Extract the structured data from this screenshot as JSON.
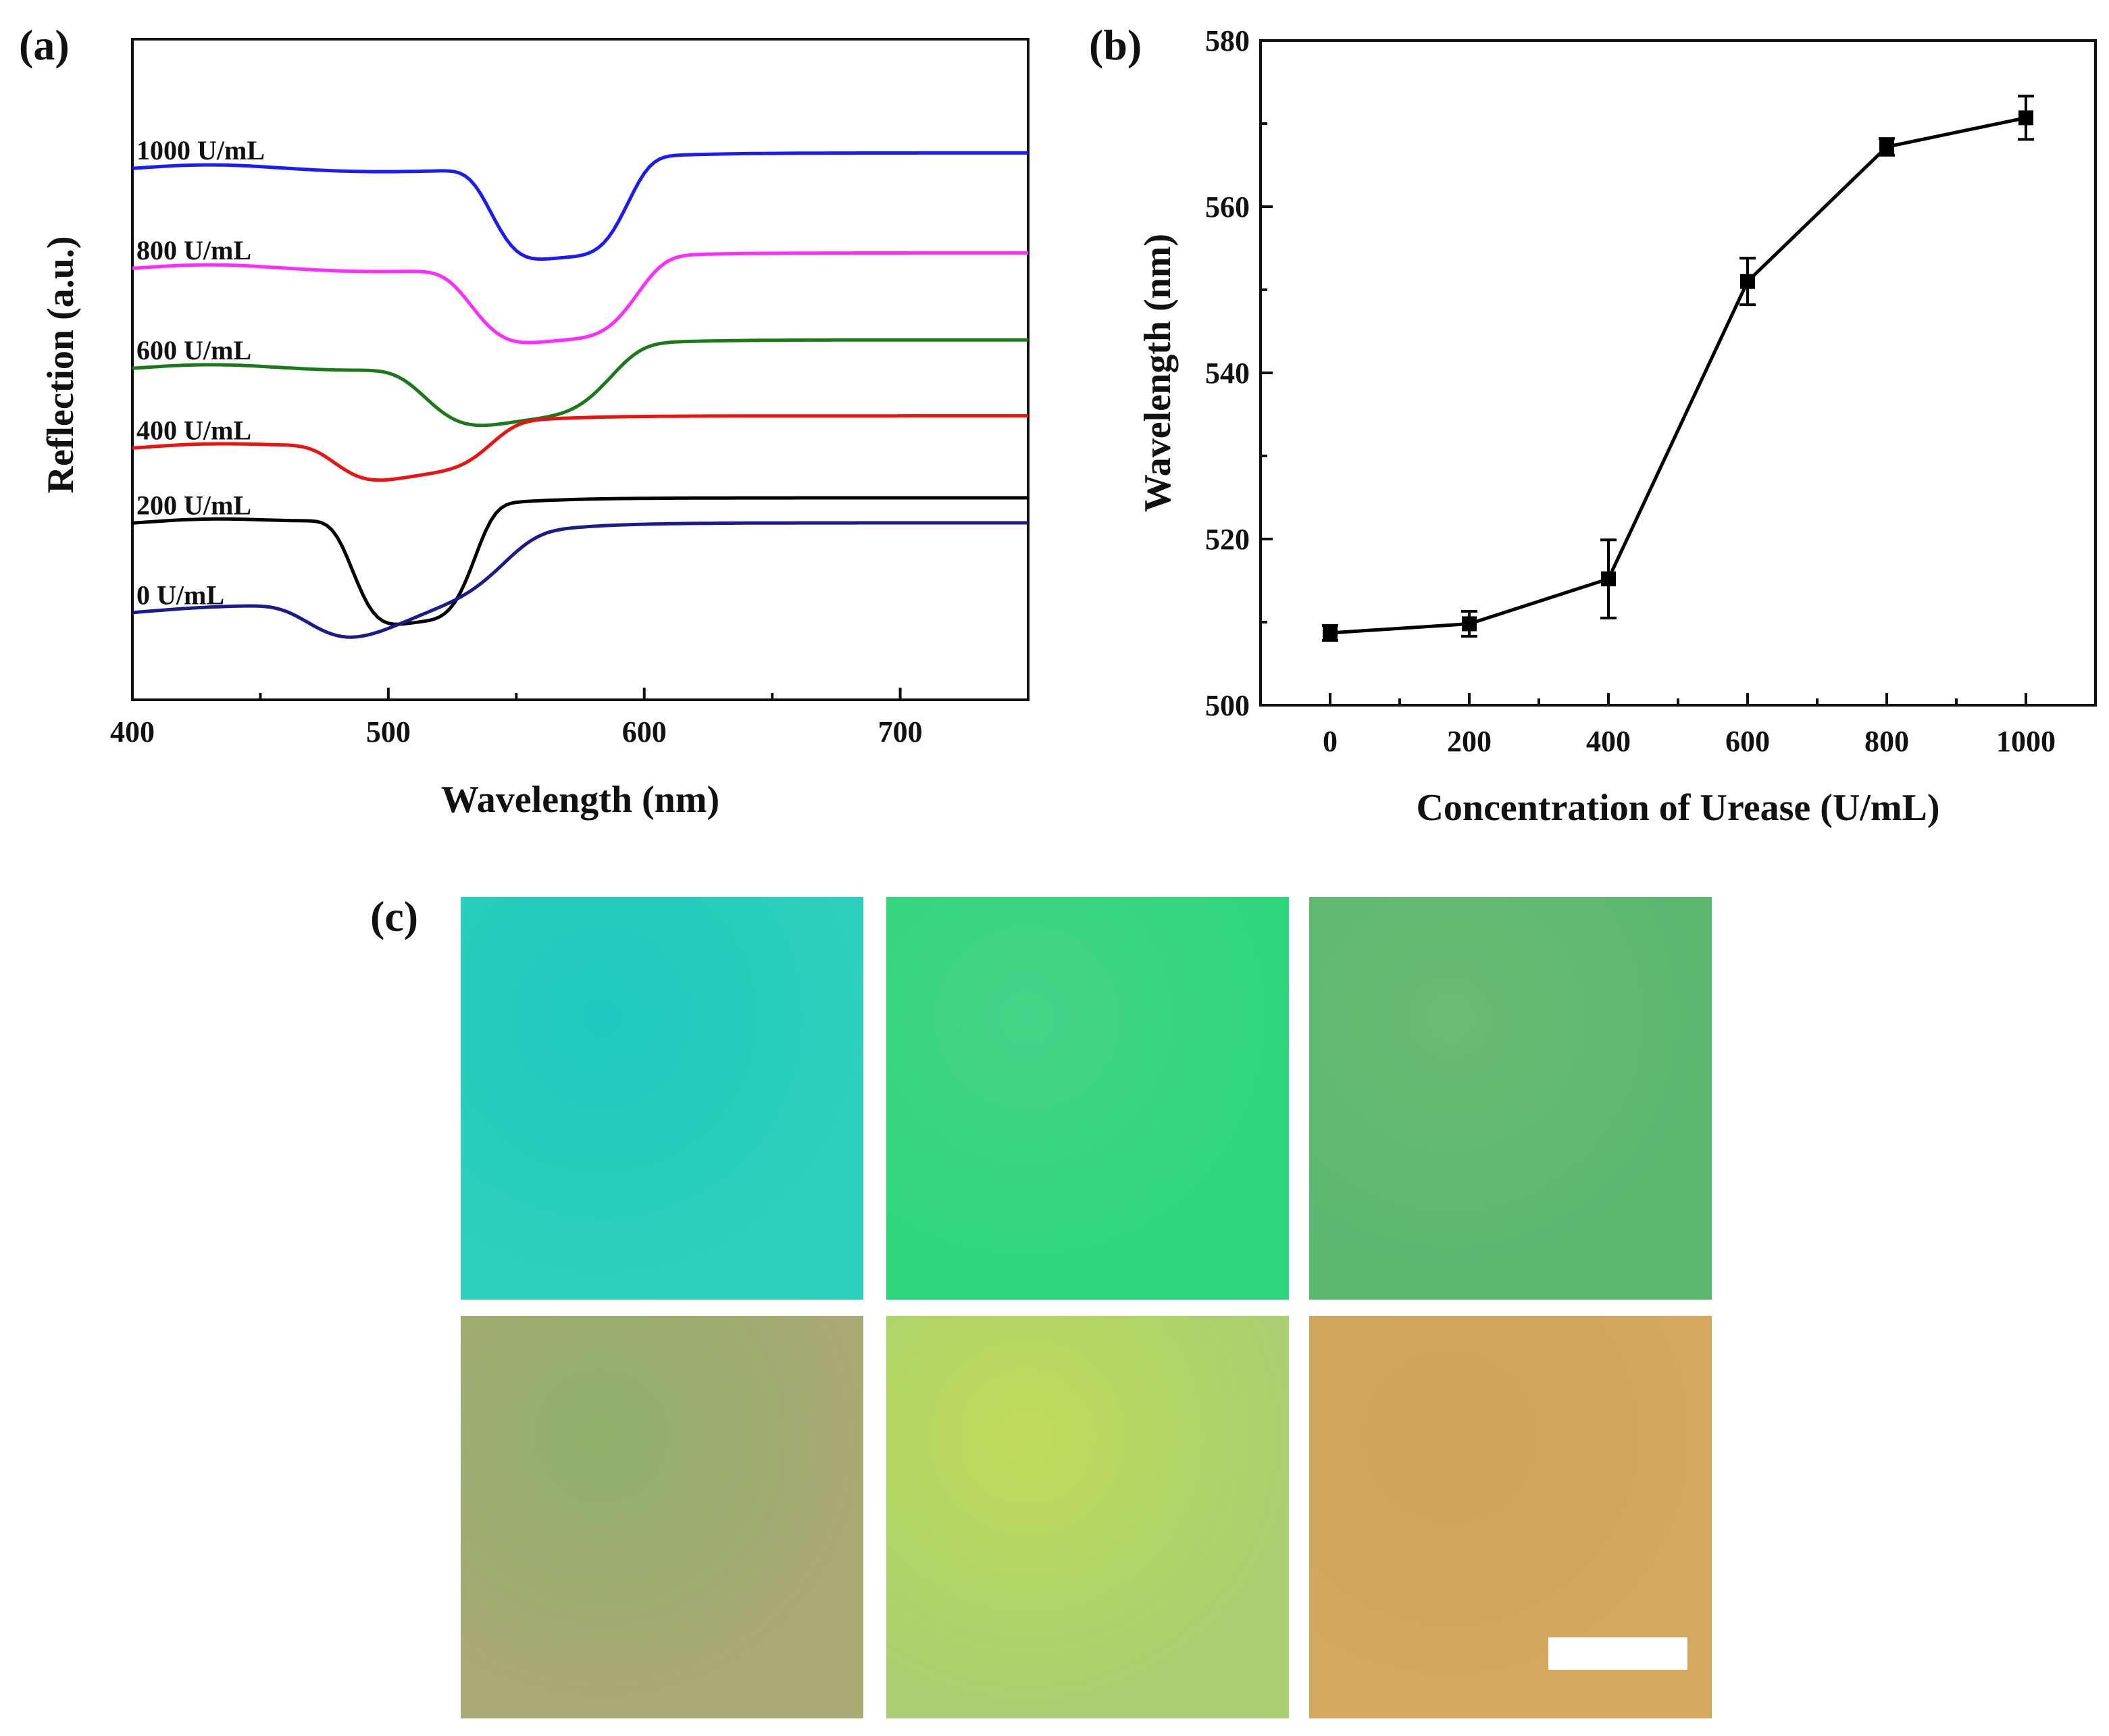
{
  "panel_labels": {
    "a": "(a)",
    "b": "(b)",
    "c": "(c)"
  },
  "chart_data": [
    {
      "id": "a",
      "type": "line",
      "title": "",
      "xlabel": "Wavelength (nm)",
      "ylabel": "Reflection (a.u.)",
      "xlim": [
        400,
        750
      ],
      "xticks": [
        400,
        500,
        600,
        700
      ],
      "grid": false,
      "note": "Offset reflection spectra; dip depth in relative units, curves stacked vertically.",
      "series": [
        {
          "name": "1000 U/mL",
          "color": "#1a1aff",
          "baseline": 5.0,
          "dip_center": 567,
          "dip_width": 28,
          "dip_depth": 0.95,
          "start": 0.0,
          "end": 0.2
        },
        {
          "name": "800 U/mL",
          "color": "#ff2bff",
          "baseline": 4.0,
          "dip_center": 565,
          "dip_width": 34,
          "dip_depth": 0.78,
          "start": 0.0,
          "end": 0.2
        },
        {
          "name": "600 U/mL",
          "color": "#1a7a1a",
          "baseline": 3.05,
          "dip_center": 551,
          "dip_width": 38,
          "dip_depth": 0.65,
          "start": -0.05,
          "end": 0.28
        },
        {
          "name": "400 U/mL",
          "color": "#ee1111",
          "baseline": 2.35,
          "dip_center": 510,
          "dip_width": 32,
          "dip_depth": 0.42,
          "start": -0.15,
          "end": 0.22
        },
        {
          "name": "200 U/mL",
          "color": "#000000",
          "baseline": 1.45,
          "dip_center": 510,
          "dip_width": 25,
          "dip_depth": 1.1,
          "start": 0.0,
          "end": 0.3
        },
        {
          "name": "0 U/mL",
          "color": "#1b1b8f",
          "baseline": 0.55,
          "dip_center": 508,
          "dip_width": 40,
          "dip_depth": 0.5,
          "start": 0.0,
          "end": 0.95
        }
      ]
    },
    {
      "id": "b",
      "type": "line",
      "title": "",
      "xlabel": "Concentration of Urease (U/mL)",
      "ylabel": "Wavelength (nm)",
      "xlim": [
        -100,
        1100
      ],
      "ylim": [
        500,
        580
      ],
      "xticks": [
        0,
        200,
        400,
        600,
        800,
        1000
      ],
      "yticks": [
        500,
        520,
        540,
        560,
        580
      ],
      "grid": false,
      "series": [
        {
          "name": "peak wavelength",
          "color": "#000000",
          "x": [
            0,
            200,
            400,
            600,
            800,
            1000
          ],
          "y": [
            508.7,
            509.8,
            515.2,
            551.0,
            567.2,
            570.7
          ],
          "err": [
            0.9,
            1.5,
            4.7,
            2.8,
            1.0,
            2.6
          ]
        }
      ]
    }
  ],
  "photos": [
    {
      "name": "photo-0",
      "color_a": "#2cd0bb",
      "color_b": "#1fc9bf"
    },
    {
      "name": "photo-200",
      "color_a": "#2ed67c",
      "color_b": "#45d487"
    },
    {
      "name": "photo-400",
      "color_a": "#5ab86f",
      "color_b": "#6bbb74"
    },
    {
      "name": "photo-600",
      "color_a": "#a9a973",
      "color_b": "#8fb06c"
    },
    {
      "name": "photo-800",
      "color_a": "#a9cf70",
      "color_b": "#bfdc5a"
    },
    {
      "name": "photo-1000",
      "color_a": "#d5a85f",
      "color_b": "#cfa35a"
    }
  ]
}
